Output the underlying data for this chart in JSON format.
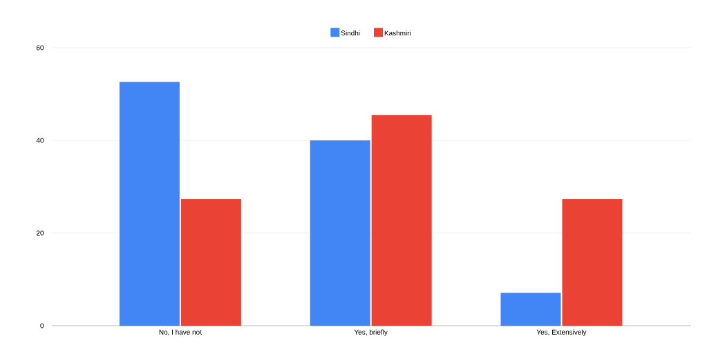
{
  "chart_data": {
    "type": "bar",
    "categories": [
      "No, I have not",
      "Yes, briefly",
      "Yes, Extensively"
    ],
    "series": [
      {
        "name": "Sindhi",
        "color": "#4285f4",
        "values": [
          52.6,
          40.0,
          7.1
        ]
      },
      {
        "name": "Kashmiri",
        "color": "#ea4335",
        "values": [
          27.3,
          45.5,
          27.3
        ]
      }
    ],
    "ylim": [
      0,
      60
    ],
    "yticks": [
      0,
      20,
      40,
      60
    ],
    "grid": "y",
    "legend": "top"
  }
}
